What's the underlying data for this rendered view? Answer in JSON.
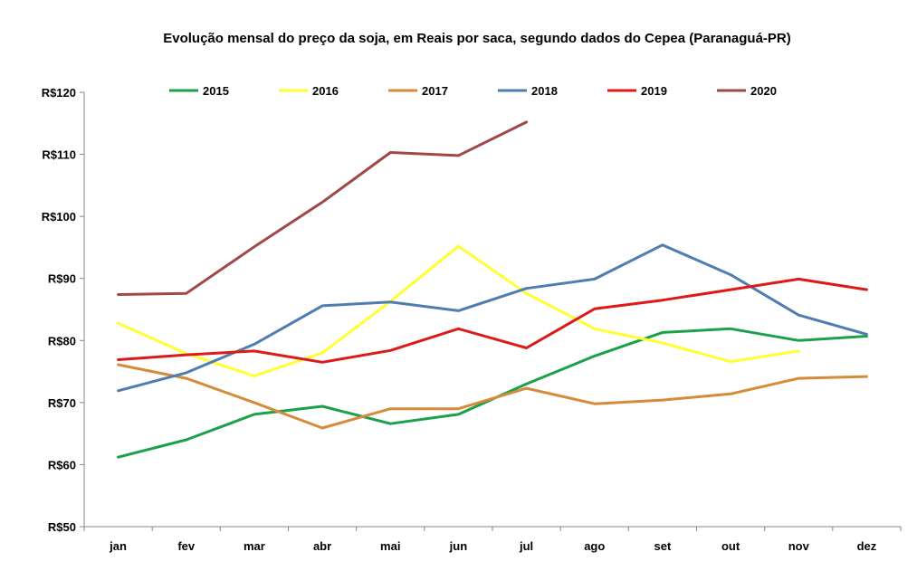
{
  "chart_data": {
    "type": "line",
    "title": "Evolução mensal do preço da soja, em Reais por saca, segundo dados do Cepea (Paranaguá-PR)",
    "xlabel": "",
    "ylabel": "",
    "categories": [
      "jan",
      "fev",
      "mar",
      "abr",
      "mai",
      "jun",
      "jul",
      "ago",
      "set",
      "out",
      "nov",
      "dez"
    ],
    "ylim": [
      50,
      120
    ],
    "yticks": [
      50,
      60,
      70,
      80,
      90,
      100,
      110,
      120
    ],
    "ytick_labels": [
      "R$50",
      "R$60",
      "R$70",
      "R$80",
      "R$90",
      "R$100",
      "R$110",
      "R$120"
    ],
    "grid": false,
    "legend": "top",
    "series": [
      {
        "name": "2015",
        "color": "#1aa14a",
        "values": [
          61.2,
          64.0,
          68.1,
          69.4,
          66.6,
          68.1,
          73.0,
          77.5,
          81.3,
          81.9,
          80.0,
          80.7
        ]
      },
      {
        "name": "2016",
        "color": "#ffff33",
        "values": [
          82.8,
          77.9,
          74.3,
          78.0,
          86.3,
          95.2,
          87.6,
          81.9,
          79.6,
          76.6,
          78.3,
          null
        ]
      },
      {
        "name": "2017",
        "color": "#d68b3c",
        "values": [
          76.1,
          73.9,
          70.0,
          65.9,
          69.0,
          69.0,
          72.3,
          69.8,
          70.4,
          71.4,
          73.9,
          74.2
        ]
      },
      {
        "name": "2018",
        "color": "#4f7db0",
        "values": [
          71.9,
          74.8,
          79.4,
          85.6,
          86.2,
          84.8,
          88.4,
          89.9,
          95.4,
          90.6,
          84.1,
          81.0
        ]
      },
      {
        "name": "2019",
        "color": "#dd1a1a",
        "values": [
          76.9,
          77.7,
          78.3,
          76.5,
          78.4,
          81.9,
          78.8,
          85.1,
          86.5,
          88.2,
          89.9,
          88.2
        ]
      },
      {
        "name": "2020",
        "color": "#a04848",
        "values": [
          87.4,
          87.6,
          95.1,
          102.3,
          110.3,
          109.8,
          115.2,
          null,
          null,
          null,
          null,
          null
        ]
      }
    ]
  }
}
